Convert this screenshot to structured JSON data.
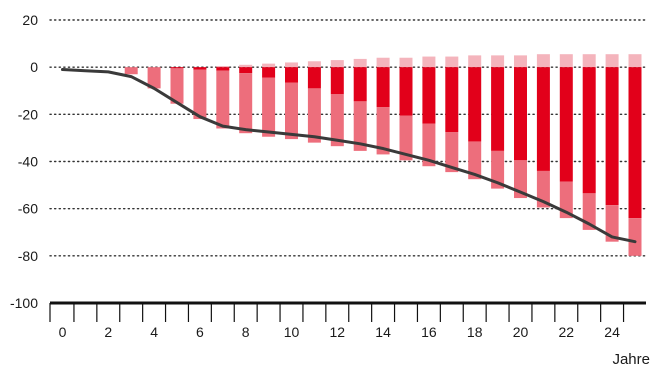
{
  "chart_data": {
    "type": "bar",
    "title": "",
    "xlabel": "Jahre",
    "ylabel": "",
    "x_ticks": [
      "0",
      "2",
      "4",
      "6",
      "8",
      "10",
      "12",
      "14",
      "16",
      "18",
      "20",
      "22",
      "24"
    ],
    "y_ticks": [
      "20",
      "0",
      "-20",
      "-40",
      "-60",
      "-80",
      "-100"
    ],
    "ylim": [
      -100,
      20
    ],
    "xlim": [
      -0.6,
      25.6
    ],
    "grid": "horizontal-dotted",
    "stacked": true,
    "x": [
      1,
      2,
      3,
      4,
      5,
      6,
      7,
      8,
      9,
      10,
      11,
      12,
      13,
      14,
      15,
      16,
      17,
      18,
      19,
      20,
      21,
      22,
      23,
      24,
      25
    ],
    "series": [
      {
        "color": "#f4b4bc",
        "values": [
          0,
          0,
          0,
          0,
          0,
          0,
          0.5,
          1,
          1.5,
          2,
          2.5,
          3,
          3.5,
          4,
          4,
          4.5,
          4.5,
          5,
          5,
          5,
          5.5,
          5.5,
          5.5,
          5.5,
          5.5
        ]
      },
      {
        "color": "#e2001a",
        "values": [
          0,
          0,
          0,
          0,
          -0.5,
          -1,
          -1.5,
          -2.5,
          -4.5,
          -6.5,
          -9,
          -11.5,
          -14.5,
          -17,
          -20.5,
          -24,
          -27.5,
          -31.5,
          -35.5,
          -39.5,
          -44,
          -48.5,
          -53.5,
          -58.5,
          -64
        ]
      },
      {
        "color": "#ed6e7c",
        "values": [
          0,
          0,
          -3,
          -9,
          -15,
          -21,
          -24.5,
          -25.5,
          -25,
          -24,
          -23,
          -22,
          -21,
          -20,
          -19,
          -18,
          -17,
          -16,
          -16,
          -16,
          -15.5,
          -15.5,
          -15.5,
          -15.5,
          -16
        ]
      }
    ],
    "line": {
      "color": "#3a3a3a",
      "x": [
        0,
        1,
        2,
        3,
        4,
        5,
        6,
        7,
        8,
        9,
        10,
        11,
        12,
        13,
        14,
        15,
        16,
        17,
        18,
        19,
        20,
        21,
        22,
        23,
        24,
        25
      ],
      "values": [
        -1,
        -1.5,
        -2,
        -4,
        -9,
        -15,
        -21,
        -25,
        -26.5,
        -27.5,
        -28.5,
        -29.5,
        -31,
        -32.5,
        -34.5,
        -37,
        -39.5,
        -42.5,
        -45.5,
        -49,
        -53,
        -57,
        -61.5,
        -66.5,
        -72,
        -74
      ]
    }
  }
}
